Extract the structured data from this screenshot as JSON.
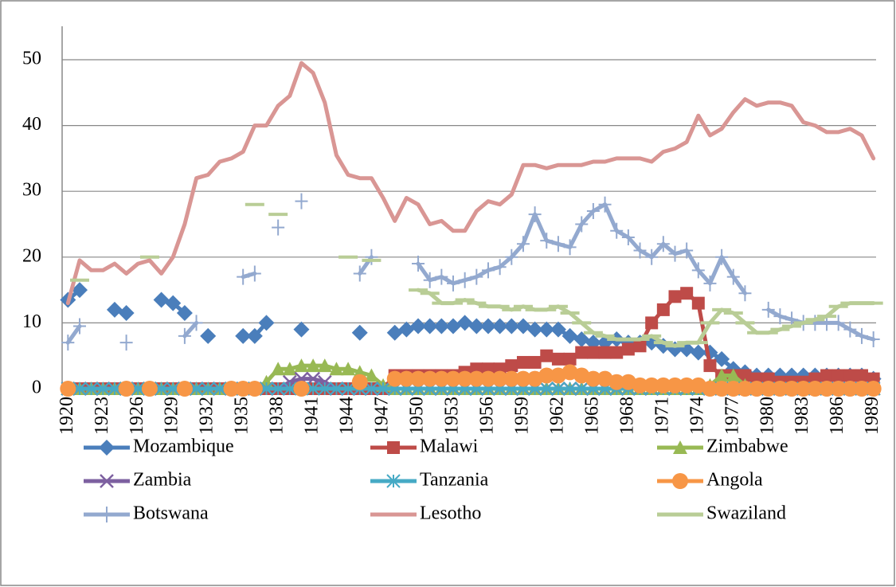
{
  "chart_data": {
    "type": "line",
    "categories": [
      "1920",
      null,
      null,
      "1923",
      null,
      null,
      "1926",
      null,
      null,
      "1929",
      null,
      null,
      "1932",
      null,
      null,
      "1935",
      null,
      null,
      "1938",
      null,
      null,
      "1941",
      null,
      null,
      "1944",
      null,
      null,
      "1947",
      null,
      null,
      "1950",
      null,
      null,
      "1953",
      null,
      null,
      "1956",
      null,
      null,
      "1959",
      null,
      null,
      "1962",
      null,
      null,
      "1965",
      null,
      null,
      "1968",
      null,
      null,
      "1971",
      null,
      null,
      "1974",
      null,
      null,
      "1977",
      null,
      null,
      "1980",
      null,
      null,
      "1983",
      null,
      null,
      "1986",
      null,
      null,
      "1989"
    ],
    "ylim": [
      0,
      55
    ],
    "yticks": [
      0,
      10,
      20,
      30,
      40,
      50
    ],
    "grid": true,
    "series": [
      {
        "name": "Mozambique",
        "color": "#4a7ebb",
        "marker": "diamond",
        "values": [
          13.5,
          15,
          null,
          null,
          12,
          11.5,
          null,
          null,
          13.5,
          13,
          11.5,
          null,
          8,
          null,
          null,
          8,
          8,
          10,
          null,
          null,
          9,
          null,
          null,
          null,
          null,
          8.5,
          null,
          null,
          8.5,
          9,
          9.5,
          9.5,
          9.5,
          9.5,
          10,
          9.5,
          9.5,
          9.5,
          9.5,
          9.5,
          9,
          9,
          9,
          8,
          7.5,
          7,
          7,
          7.5,
          7,
          7,
          7,
          6.5,
          6,
          6,
          5.5,
          5.5,
          4.5,
          3,
          2.5,
          2,
          2,
          2,
          2,
          2,
          2,
          2,
          2,
          2,
          2,
          1.5
        ]
      },
      {
        "name": "Malawi",
        "color": "#be4b48",
        "marker": "square",
        "values": [
          0,
          0,
          0,
          0,
          0,
          0,
          0,
          0,
          0,
          0,
          0,
          0,
          0,
          0,
          0,
          0,
          0,
          0,
          0,
          0,
          0,
          0,
          0,
          0,
          0,
          0,
          0,
          0,
          2,
          2,
          2,
          2,
          2,
          2,
          2.5,
          3,
          3,
          3,
          3.5,
          4,
          4,
          5,
          4.5,
          4.5,
          5.5,
          5.5,
          5.5,
          5.5,
          6,
          6.5,
          10,
          12,
          14,
          14.5,
          13,
          3.5,
          2,
          2,
          2,
          1.5,
          1.5,
          1,
          1,
          1,
          1.5,
          2,
          2,
          2,
          2,
          1.5
        ]
      },
      {
        "name": "Zimbabwe",
        "color": "#98b954",
        "marker": "triangle",
        "values": [
          0,
          0,
          0,
          0,
          0,
          0,
          0,
          0,
          0,
          0,
          0,
          0,
          0,
          0,
          0,
          0,
          0,
          1,
          3,
          3,
          3.5,
          3.5,
          3.5,
          3,
          3,
          2.5,
          2,
          0.5,
          0,
          0,
          0,
          0,
          0,
          0,
          0,
          0,
          0,
          0,
          0,
          0,
          0,
          0,
          0,
          0,
          0,
          0,
          0,
          0,
          0,
          0,
          0,
          0,
          0,
          0,
          0,
          0.5,
          2,
          2,
          0.5,
          0,
          0,
          0,
          0,
          0,
          0,
          0,
          0,
          0,
          0,
          0
        ]
      },
      {
        "name": "Zambia",
        "color": "#7d60a0",
        "marker": "cross",
        "values": [
          0,
          0,
          0,
          0,
          0,
          0,
          0,
          0,
          0,
          0,
          0,
          0,
          0,
          0,
          0,
          0,
          0,
          0,
          0,
          1,
          1.5,
          1.5,
          1,
          0,
          0,
          0,
          0,
          0,
          0,
          0,
          0,
          0,
          0,
          0,
          0,
          0,
          0,
          0,
          0,
          0,
          0,
          0,
          0,
          0,
          0,
          0,
          0,
          0,
          0,
          0,
          0,
          0,
          0,
          0,
          0,
          0,
          0,
          0,
          0,
          0,
          0,
          0,
          0,
          0,
          0,
          0,
          0,
          0,
          0,
          0
        ]
      },
      {
        "name": "Tanzania",
        "color": "#46aac5",
        "marker": "star",
        "values": [
          0,
          0,
          0,
          0,
          0,
          0,
          0,
          0,
          0,
          0,
          0,
          0,
          0,
          0,
          0,
          0,
          0,
          0,
          0,
          0,
          0,
          0,
          0,
          0,
          0,
          0,
          0,
          0,
          0,
          0,
          0,
          0,
          0,
          0,
          0,
          0,
          0,
          0,
          0,
          0,
          0,
          0,
          0,
          0,
          0,
          0,
          0,
          0,
          0,
          0,
          0,
          0,
          0,
          0,
          0,
          0,
          0,
          0,
          0,
          0,
          0,
          0,
          0,
          0,
          0,
          0,
          0,
          0,
          0,
          0
        ]
      },
      {
        "name": "Angola",
        "color": "#f79646",
        "marker": "circle",
        "values": [
          0,
          null,
          null,
          null,
          null,
          0,
          null,
          0,
          null,
          null,
          0,
          null,
          null,
          null,
          0,
          0,
          0,
          null,
          null,
          null,
          0,
          null,
          null,
          null,
          null,
          1,
          null,
          null,
          1.5,
          1.5,
          1.5,
          1.5,
          1.5,
          1.5,
          1.5,
          1.5,
          1.5,
          1.5,
          1.5,
          1.5,
          1.5,
          2,
          2,
          2.5,
          2,
          1.5,
          1.5,
          1,
          1,
          0.5,
          0.5,
          0.5,
          0.5,
          0.5,
          0.5,
          0,
          0,
          0,
          0,
          0,
          0,
          0,
          0,
          0,
          0,
          0,
          0,
          0,
          0,
          0
        ]
      },
      {
        "name": "Botswana",
        "color": "#93a9cf",
        "marker": "plus",
        "values": [
          7,
          9.5,
          null,
          null,
          null,
          7,
          null,
          null,
          null,
          null,
          8,
          10,
          null,
          null,
          null,
          17,
          17.5,
          null,
          24.5,
          null,
          28.5,
          null,
          null,
          null,
          null,
          17.5,
          20,
          null,
          null,
          null,
          19,
          16.5,
          17,
          16,
          16.5,
          17,
          18,
          18.5,
          20,
          22,
          26.5,
          22.5,
          22,
          21.5,
          25,
          27,
          28,
          24,
          23,
          21,
          20,
          22,
          20.5,
          21,
          18,
          16,
          20,
          17,
          14.5,
          null,
          12,
          11,
          10.5,
          10,
          10,
          10,
          10,
          9,
          8,
          7.5
        ]
      },
      {
        "name": "Lesotho",
        "color": "#d99694",
        "marker": "none",
        "values": [
          13,
          19.5,
          18,
          18,
          19,
          17.5,
          19,
          19.5,
          17.5,
          20,
          25,
          32,
          32.5,
          34.5,
          35,
          36,
          40,
          40,
          43,
          44.5,
          49.5,
          48,
          43.5,
          35.5,
          32.5,
          32,
          32,
          29,
          25.5,
          29,
          28,
          25,
          25.5,
          24,
          24,
          27,
          28.5,
          28,
          29.5,
          34,
          34,
          33.5,
          34,
          34,
          34,
          34.5,
          34.5,
          35,
          35,
          35,
          34.5,
          36,
          36.5,
          37.5,
          41.5,
          38.5,
          39.5,
          42,
          44,
          43,
          43.5,
          43.5,
          43,
          40.5,
          40,
          39,
          39,
          39.5,
          38.5,
          35
        ]
      },
      {
        "name": "Swaziland",
        "color": "#b9cd96",
        "marker": "dash",
        "values": [
          null,
          16.5,
          null,
          null,
          null,
          null,
          null,
          20,
          null,
          null,
          null,
          null,
          null,
          null,
          null,
          null,
          28,
          null,
          26.5,
          null,
          null,
          null,
          null,
          null,
          20,
          null,
          19.5,
          null,
          null,
          null,
          15,
          14.5,
          13,
          13,
          13.5,
          13,
          12.5,
          12.5,
          12,
          12.5,
          12,
          12,
          12.5,
          11.5,
          10,
          8.5,
          8,
          7.5,
          7.5,
          7.5,
          8,
          7,
          6.5,
          7,
          7,
          10,
          12,
          11.5,
          10,
          8.5,
          8.5,
          9,
          9.5,
          10,
          10.5,
          11,
          12.5,
          13,
          13,
          13
        ]
      }
    ]
  }
}
